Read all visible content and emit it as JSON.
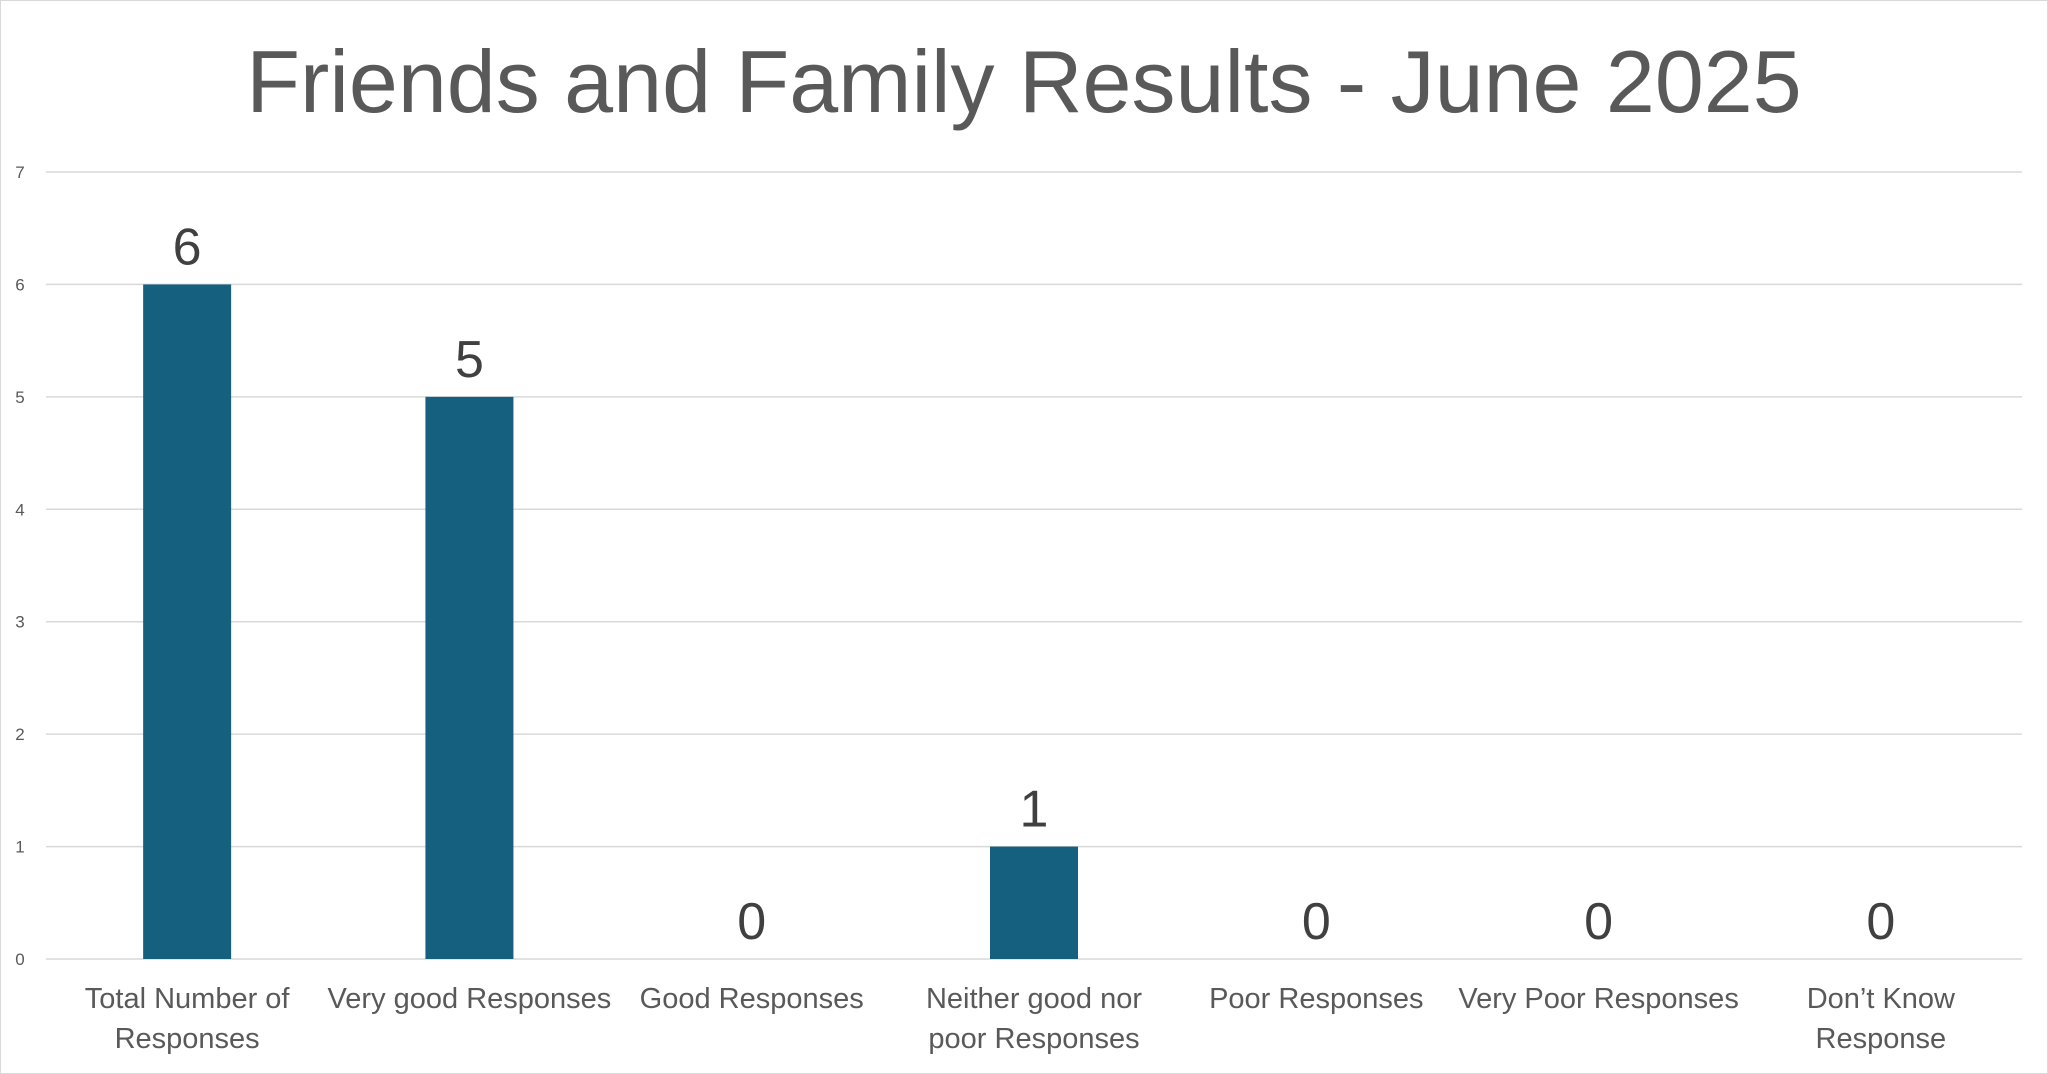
{
  "chart_data": {
    "type": "bar",
    "title": "Friends and Family Results - June 2025",
    "xlabel": "",
    "ylabel": "",
    "categories": [
      [
        "Total Number of",
        "Responses"
      ],
      [
        "Very good Responses"
      ],
      [
        "Good Responses"
      ],
      [
        "Neither good nor",
        "poor Responses"
      ],
      [
        "Poor Responses"
      ],
      [
        "Very Poor Responses"
      ],
      [
        "Don’t Know",
        "Response"
      ]
    ],
    "values": [
      6,
      5,
      0,
      1,
      0,
      0,
      0
    ],
    "ylim": [
      0,
      7
    ],
    "yticks": [
      "0",
      "1",
      "2",
      "3",
      "4",
      "5",
      "6",
      "7"
    ],
    "grid": true,
    "legend": "none",
    "data_labels": true,
    "colors": {
      "bar": "#155f7f",
      "grid": "#d9d9d9",
      "text": "#595959",
      "label": "#404040"
    }
  }
}
